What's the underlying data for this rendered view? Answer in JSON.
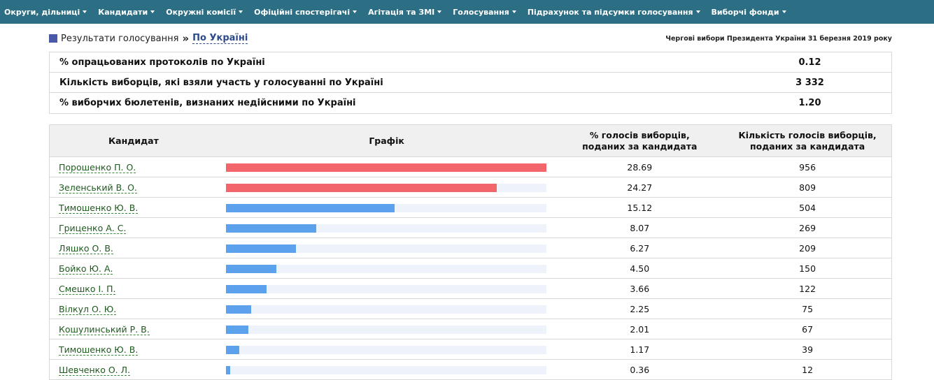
{
  "nav": [
    {
      "label": "Округи, дільниці"
    },
    {
      "label": "Кандидати"
    },
    {
      "label": "Окружні комісії"
    },
    {
      "label": "Офіційні спостерігачі"
    },
    {
      "label": "Агітація та ЗМІ"
    },
    {
      "label": "Голосування"
    },
    {
      "label": "Підрахунок та підсумки голосування"
    },
    {
      "label": "Виборчі фонди"
    }
  ],
  "breadcrumb": {
    "section": "Результати голосування",
    "separator": "»",
    "current": "По Україні"
  },
  "election_title": "Чергові вибори Президента України 31 березня 2019 року",
  "summary": [
    {
      "label": "% опрацьованих протоколів по Україні",
      "value": "0.12"
    },
    {
      "label": "Кількість виборців, які взяли участь у голосуванні по Україні",
      "value": "3 332"
    },
    {
      "label": "% виборчих бюлетенів, визнаних недійсними по Україні",
      "value": "1.20"
    }
  ],
  "table": {
    "headers": {
      "candidate": "Кандидат",
      "graph": "Графік",
      "percent_line1": "% голосів виборців,",
      "percent_line2": "поданих за кандидата",
      "votes_line1": "Кількість голосів виборців,",
      "votes_line2": "поданих за кандидата"
    },
    "colors": {
      "leader": "#f2656b",
      "other": "#5ca1ec"
    },
    "max_percent": 28.69,
    "rows": [
      {
        "name": "Порошенко П. О.",
        "percent": "28.69",
        "votes": "956",
        "pct": 28.69,
        "leader": true
      },
      {
        "name": "Зеленський В. О.",
        "percent": "24.27",
        "votes": "809",
        "pct": 24.27,
        "leader": true
      },
      {
        "name": "Тимошенко Ю. В.",
        "percent": "15.12",
        "votes": "504",
        "pct": 15.12,
        "leader": false
      },
      {
        "name": "Гриценко А. С.",
        "percent": "8.07",
        "votes": "269",
        "pct": 8.07,
        "leader": false
      },
      {
        "name": "Ляшко О. В.",
        "percent": "6.27",
        "votes": "209",
        "pct": 6.27,
        "leader": false
      },
      {
        "name": "Бойко Ю. А.",
        "percent": "4.50",
        "votes": "150",
        "pct": 4.5,
        "leader": false
      },
      {
        "name": "Смешко І. П.",
        "percent": "3.66",
        "votes": "122",
        "pct": 3.66,
        "leader": false
      },
      {
        "name": "Вілкул О. Ю.",
        "percent": "2.25",
        "votes": "75",
        "pct": 2.25,
        "leader": false
      },
      {
        "name": "Кошулинський Р. В.",
        "percent": "2.01",
        "votes": "67",
        "pct": 2.01,
        "leader": false
      },
      {
        "name": "Тимошенко Ю. В.",
        "percent": "1.17",
        "votes": "39",
        "pct": 1.17,
        "leader": false
      },
      {
        "name": "Шевченко О. Л.",
        "percent": "0.36",
        "votes": "12",
        "pct": 0.36,
        "leader": false
      }
    ]
  }
}
